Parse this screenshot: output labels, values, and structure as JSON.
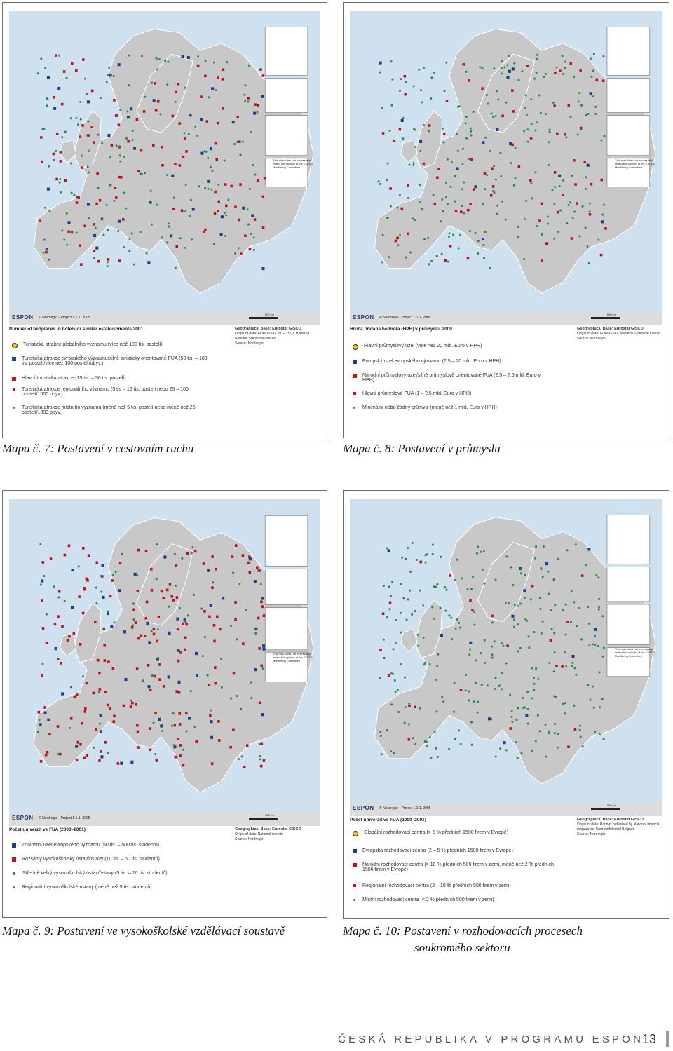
{
  "maps": [
    {
      "id": "map7",
      "caption": "Mapa č. 7: Postavení v cestovním ruchu",
      "credit": "© Nordregio - Project 1.1.1, 2005",
      "scale": "500 km",
      "legend_title": "Number of bedplaces in hotels or similar establishments 2001",
      "meta_geo": "Geographical Base: Eurostat GISCO",
      "meta_origin": "Origin of data: EUROSTAT for EU15, CH and NO, National Statistical Offices",
      "meta_source": "Source: Nordregio",
      "items": [
        {
          "text": "Turistická atrakce globálního významu (více než 100 tis. postelí)",
          "symbol": "star"
        },
        {
          "text": "Turistická atrakce evropského významu/silně turisticky orientované FUA (50 tis. – 100 tis. postelí/více než 100 postelí/obyv.)",
          "symbol": "blue"
        },
        {
          "text": "Hlavní turistická atrakce (15 tis. – 50 tis. postelí)",
          "symbol": "red"
        },
        {
          "text": "Turistická atrakce regionálního významu (5 tis – 15 tis. postelí nebo 25 – 100 postelí/1000 obyv.)",
          "symbol": "red-s"
        },
        {
          "text": "Turistická atrakce místního významu (méně než 5 tis. postelí nebo méně než 25 postelí/1000 obyv.)",
          "symbol": "green"
        }
      ]
    },
    {
      "id": "map8",
      "caption": "Mapa č. 8: Postavení v průmyslu",
      "credit": "© Nordregio - Project 1.1.1, 2005",
      "scale": "500 km",
      "legend_title": "Hrubá přidaná hodnota (HPH) v průmyslu, 2000",
      "meta_geo": "Geographical Base: Eurostat GISCO",
      "meta_origin": "Origin of data: EUROSTAT, National Statistical Offices",
      "meta_source": "Source: Nordregio",
      "items": [
        {
          "text": "Hlavní průmyslový uzel (více než 20 mld. Euro v HPH)",
          "symbol": "star"
        },
        {
          "text": "Evropský uzel evropského významu (7,5 – 20 mld. Euro v HPH)",
          "symbol": "blue"
        },
        {
          "text": "Národní průmyslový uzel/silně průmyslově orientované FUA (2,5 – 7,5 mld. Euro v HPH)",
          "symbol": "red"
        },
        {
          "text": "Hlavní průmyslové FUA (1 – 2,5 mld. Euro v HPH)",
          "symbol": "red-s"
        },
        {
          "text": "Minimální nebo žádný průmysl (méně než 1 mld. Euro v HPH)",
          "symbol": "green"
        }
      ]
    },
    {
      "id": "map9",
      "caption": "Mapa č. 9: Postavení ve vysokoškolské vzdělávací soustavě",
      "credit": "© Nordregio - Project 1.1.1, 2005",
      "scale": "500 km",
      "legend_title": "Počet univerzit ve FUA (2000–2001)",
      "meta_geo": "Geographical Base: Eurostat GISCO",
      "meta_origin": "Origin of data: National experts",
      "meta_source": "Source: Nordregio",
      "items": [
        {
          "text": "Znalostní uzel evropského významu (50 tis. – 500 tis. studentů)",
          "symbol": "blue"
        },
        {
          "text": "Rozsáhlý vysokoškolský ústav/ústavy (10 tis. – 50 tis. studentů)",
          "symbol": "red"
        },
        {
          "text": "Středně velký vysokoškolský ústav/ústavy (5 tis. – 10 tis. studentů)",
          "symbol": "green"
        },
        {
          "text": "Regionální vysokoškolské ústavy (méně než 5 tis. studentů)",
          "symbol": "green"
        }
      ]
    },
    {
      "id": "map10",
      "caption_line1": "Mapa č. 10: Postavení v rozhodovacích procesech",
      "caption_line2": "soukromého sektoru",
      "credit": "© Nordregio - Project 1.1.1, 2005",
      "scale": "500 km",
      "legend_title": "Počet univerzit ve FUA (2000–2001)",
      "meta_geo": "Geographical Base: Eurostat GISCO",
      "meta_origin": "Origin of data: Ratings published by National financial magazines, Euroconfidential Belgium",
      "meta_source": "Source: Nordregio",
      "items": [
        {
          "text": "Globální rozhodovací centra (> 5 % předních 1500 firem v Evropě)",
          "symbol": "star"
        },
        {
          "text": "Evropská rozhodovací centra (2 – 5 % předních 1500 firem v Evropě)",
          "symbol": "blue"
        },
        {
          "text": "Národní rozhodovací centra (> 10 % předních 500 firem v zemi, méně než 2 % předních 1500 firem v Evropě)",
          "symbol": "red"
        },
        {
          "text": "Regionální rozhodovací centra (2 – 10 % předních 500 firem v zemi)",
          "symbol": "red-s"
        },
        {
          "text": "Místní rozhodovací centra (< 2 % předních 500 firem v zemi)",
          "symbol": "green"
        }
      ]
    }
  ],
  "inset_note": "This map does not necessarily reflect the opinion of the ESPON Monitoring Committee",
  "espon_logo": "ESPON",
  "footer": {
    "text": "ČESKÁ REPUBLIKA V PROGRAMU ESPON",
    "page_number": "13"
  },
  "colors": {
    "sea": "#cfe0ee",
    "land": "#c8c8c8",
    "blue_node": "#1e3f8a",
    "red_node": "#c1121c",
    "green_node": "#2a8a4e",
    "star_node": "#e8c30a"
  }
}
